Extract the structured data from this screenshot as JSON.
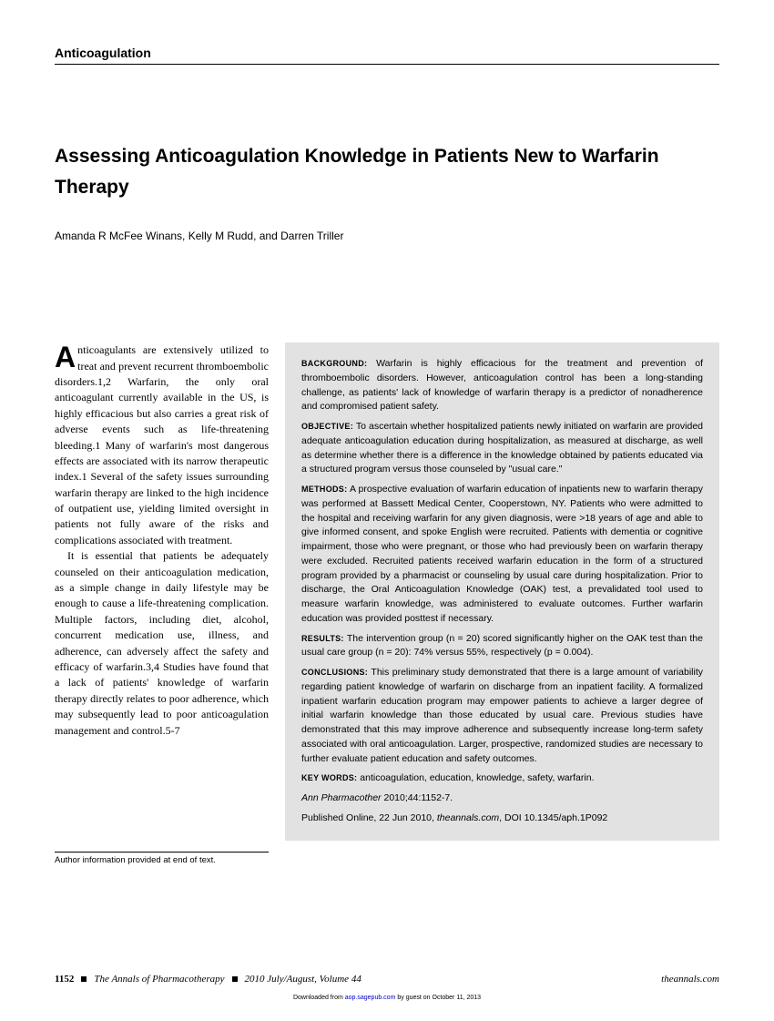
{
  "section": "Anticoagulation",
  "title": "Assessing Anticoagulation Knowledge in Patients New to Warfarin Therapy",
  "authors": "Amanda R McFee Winans, Kelly M Rudd, and Darren Triller",
  "body": {
    "dropcap": "A",
    "p1": "nticoagulants are extensively utilized to treat and prevent recurrent thromboembolic disorders.1,2 Warfarin, the only oral anticoagulant currently available in the US, is highly efficacious but also carries a great risk of adverse events such as life-threatening bleeding.1 Many of warfarin's most dangerous effects are associated with its narrow therapeutic index.1 Several of the safety issues surrounding warfarin therapy are linked to the high incidence of outpatient use, yielding limited oversight in patients not fully aware of the risks and complications associated with treatment.",
    "p2": "It is essential that patients be adequately counseled on their anticoagulation medication, as a simple change in daily lifestyle may be enough to cause a life-threatening complication. Multiple factors, including diet, alcohol, concurrent medication use, illness, and adherence, can adversely affect the safety and efficacy of warfarin.3,4 Studies have found that a lack of patients' knowledge of warfarin therapy directly relates to poor adherence, which may subsequently lead to poor anticoagulation management and control.5-7"
  },
  "abstract": {
    "background_label": "BACKGROUND:",
    "background": "Warfarin is highly efficacious for the treatment and prevention of thromboembolic disorders. However, anticoagulation control has been a long-standing challenge, as patients' lack of knowledge of warfarin therapy is a predictor of nonadherence and compromised patient safety.",
    "objective_label": "OBJECTIVE:",
    "objective": "To ascertain whether hospitalized patients newly initiated on warfarin are provided adequate anticoagulation education during hospitalization, as measured at discharge, as well as determine whether there is a difference in the knowledge obtained by patients educated via a structured program versus those counseled by \"usual care.\"",
    "methods_label": "METHODS:",
    "methods": "A prospective evaluation of warfarin education of inpatients new to warfarin therapy was performed at Bassett Medical Center, Cooperstown, NY. Patients who were admitted to the hospital and receiving warfarin for any given diagnosis, were >18 years of age and able to give informed consent, and spoke English were recruited. Patients with dementia or cognitive impairment, those who were pregnant, or those who had previously been on warfarin therapy were excluded. Recruited patients received warfarin education in the form of a structured program provided by a pharmacist or counseling by usual care during hospitalization. Prior to discharge, the Oral Anticoagulation Knowledge (OAK) test, a prevalidated tool used to measure warfarin knowledge, was administered to evaluate outcomes. Further warfarin education was provided posttest if necessary.",
    "results_label": "RESULTS:",
    "results": "The intervention group (n = 20) scored significantly higher on the OAK test than the usual care group (n = 20): 74% versus 55%, respectively (p = 0.004).",
    "conclusions_label": "CONCLUSIONS:",
    "conclusions": "This preliminary study demonstrated that there is a large amount of variability regarding patient knowledge of warfarin on discharge from an inpatient facility. A formalized inpatient warfarin education program may empower patients to achieve a larger degree of initial warfarin knowledge than those educated by usual care. Previous studies have demonstrated that this may improve adherence and subsequently increase long-term safety associated with oral anticoagulation. Larger, prospective, randomized studies are necessary to further evaluate patient education and safety outcomes.",
    "keywords_label": "KEY WORDS:",
    "keywords": "anticoagulation, education, knowledge, safety, warfarin.",
    "citation_journal": "Ann Pharmacother",
    "citation_rest": " 2010;44:1152-7.",
    "published_prefix": "Published Online, 22 Jun 2010, ",
    "published_journal": "theannals.com",
    "published_doi": ", DOI 10.1345/aph.1P092"
  },
  "author_info": "Author information provided at end of text.",
  "footer": {
    "page": "1152",
    "journal": "The Annals of Pharmacotherapy",
    "issue": "2010 July/August, Volume 44",
    "url": "theannals.com"
  },
  "download": {
    "prefix": "Downloaded from ",
    "link": "aop.sagepub.com",
    "suffix": " by guest on October 11, 2013"
  }
}
